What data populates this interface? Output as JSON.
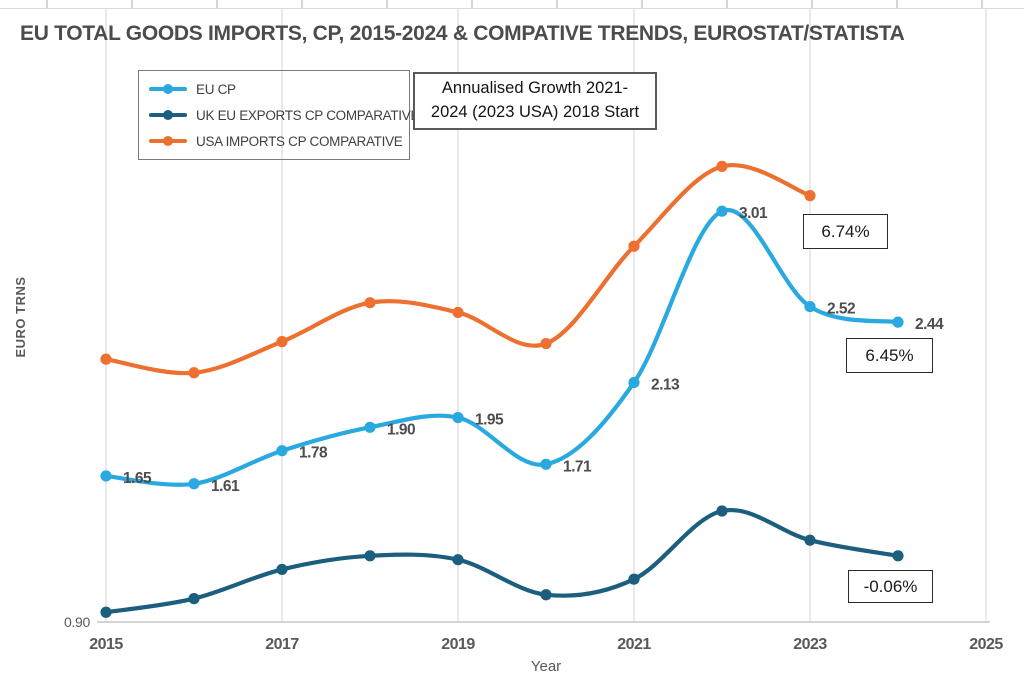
{
  "title": "EU TOTAL GOODS IMPORTS, CP, 2015-2024 & COMPATIVE TRENDS, EUROSTAT/STATISTA",
  "annotation_box": {
    "line1": "Annualised Growth 2021-",
    "line2": "2024 (2023 USA) 2018 Start"
  },
  "chart_data": {
    "type": "line",
    "title": "EU TOTAL GOODS IMPORTS, CP, 2015-2024 & COMPATIVE TRENDS, EUROSTAT/STATISTA",
    "xlabel": "Year",
    "ylabel": "EURO TRNS",
    "x": [
      2015,
      2016,
      2017,
      2018,
      2019,
      2020,
      2021,
      2022,
      2023,
      2024
    ],
    "x_ticks": [
      2015,
      2017,
      2019,
      2021,
      2023,
      2025
    ],
    "xlim": [
      2015,
      2025
    ],
    "y_tick_labels": [
      "0.90"
    ],
    "ylim": [
      0.9,
      3.55
    ],
    "grid": "vertical-only",
    "legend_position": "top-left-inside",
    "series": [
      {
        "name": "EU CP",
        "color": "#29A9E0",
        "values": [
          1.65,
          1.61,
          1.78,
          1.9,
          1.95,
          1.71,
          2.13,
          3.01,
          2.52,
          2.44
        ],
        "show_labels": true
      },
      {
        "name": "UK EU EXPORTS CP COMPARATIVE",
        "color": "#1B5E7E",
        "values": [
          0.95,
          1.02,
          1.17,
          1.24,
          1.22,
          1.04,
          1.12,
          1.47,
          1.32,
          1.24
        ],
        "show_labels": false,
        "note": "values estimated from plot (no data labels shown)"
      },
      {
        "name": "USA IMPORTS CP COMPARATIVE",
        "color": "#ED7030",
        "values": [
          2.25,
          2.18,
          2.34,
          2.54,
          2.49,
          2.33,
          2.83,
          3.24,
          3.09
        ],
        "show_labels": false,
        "note": "values estimated from plot (no data labels shown); series ends 2023"
      }
    ],
    "annotations": [
      {
        "id": "usa_growth",
        "text": "6.74%"
      },
      {
        "id": "eu_growth",
        "text": "6.45%"
      },
      {
        "id": "uk_growth",
        "text": "-0.06%"
      }
    ]
  }
}
